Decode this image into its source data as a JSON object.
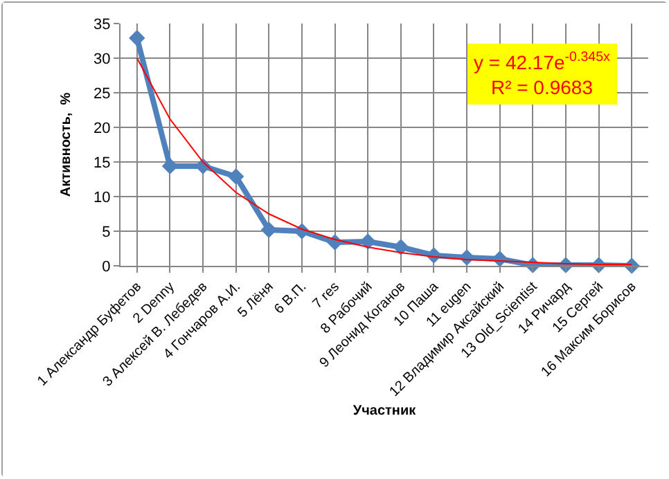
{
  "chart_data": {
    "type": "line",
    "ylabel": "Активность,  %",
    "xlabel": "Участник",
    "categories": [
      "1 Александр Буфетов",
      "2 Denny",
      "3 Алексей В. Лебедев",
      "4 Гончаров А.И.",
      "5 Лёня",
      "6 В.П.",
      "7 res",
      "8 Рабочий",
      "9 Леонид Коганов",
      "10 Паша",
      "11 eugen",
      "12 Владимир Аксайский",
      "13 Old_Scientist",
      "14 Ричард",
      "15 Сергей",
      "16 Максим Борисов"
    ],
    "series": [
      {
        "color": "#4f81bd",
        "marker": "diamond",
        "values": [
          32.9,
          14.4,
          14.4,
          12.9,
          5.2,
          5.0,
          3.4,
          3.5,
          2.7,
          1.5,
          1.2,
          1.0,
          0.1,
          0.1,
          0.1,
          0.0
        ]
      },
      {
        "type": "line",
        "color": "#ff0000",
        "marker": "none",
        "values": [
          30.0,
          21.2,
          15.0,
          10.6,
          7.5,
          5.3,
          3.8,
          2.7,
          1.9,
          1.3,
          0.9,
          0.7,
          0.5,
          0.3,
          0.2,
          0.2
        ]
      }
    ],
    "annotations": [
      "y = 42.17e$^{-0.345x}$",
      "R² = 0.9683"
    ],
    "ylim": [
      0,
      35
    ],
    "yticks": [
      0,
      5,
      10,
      15,
      20,
      25,
      30,
      35
    ],
    "grid": true,
    "line_style": "solid"
  }
}
